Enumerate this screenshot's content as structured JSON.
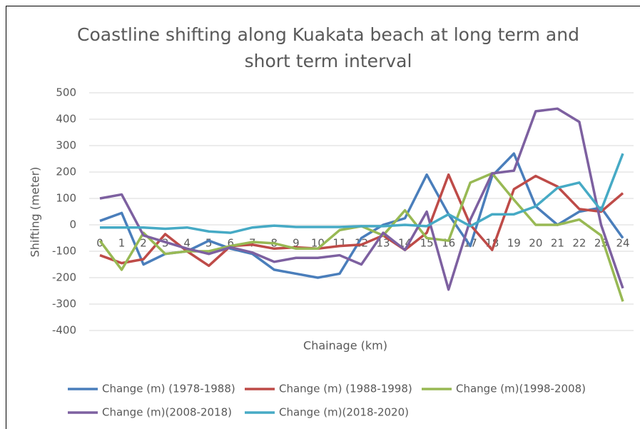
{
  "chart_data": {
    "type": "line",
    "title": "Coastline shifting along Kuakata beach at long term and short term interval",
    "x_label": "Chainage (km)",
    "y_label": "Shifting (meter)",
    "categories": [
      "0",
      "1",
      "2",
      "3",
      "4",
      "5",
      "6",
      "7",
      "8",
      "9",
      "10",
      "11",
      "12",
      "13",
      "14",
      "15",
      "16",
      "17",
      "18",
      "19",
      "20",
      "21",
      "22",
      "23",
      "24"
    ],
    "ylim": [
      -400,
      500
    ],
    "yticks": [
      -400,
      -300,
      -200,
      -100,
      0,
      100,
      200,
      300,
      400,
      500
    ],
    "grid": true,
    "legend": "bottom",
    "series": [
      {
        "name": "Change (m) (1978-1988)",
        "color": "#4a7ebb",
        "values": [
          15,
          45,
          -150,
          -110,
          -100,
          -60,
          -90,
          -110,
          -170,
          -185,
          -200,
          -185,
          -50,
          0,
          25,
          190,
          40,
          -80,
          185,
          270,
          70,
          0,
          50,
          65,
          -50
        ]
      },
      {
        "name": "Change (m) (1988-1998)",
        "color": "#be4b48",
        "values": [
          -115,
          -145,
          -130,
          -35,
          -100,
          -155,
          -80,
          -75,
          -90,
          -85,
          -90,
          -80,
          -75,
          -40,
          -95,
          -30,
          190,
          0,
          -95,
          135,
          185,
          145,
          60,
          50,
          120
        ]
      },
      {
        "name": "Change (m)(1998-2008)",
        "color": "#98b954",
        "values": [
          -60,
          -170,
          -30,
          -110,
          -100,
          -100,
          -80,
          -65,
          -70,
          -90,
          -90,
          -20,
          -5,
          -40,
          55,
          -50,
          -60,
          160,
          195,
          95,
          0,
          0,
          20,
          -40,
          -290
        ]
      },
      {
        "name": "Change (m)(2008-2018)",
        "color": "#7d60a0",
        "values": [
          100,
          115,
          -40,
          -65,
          -90,
          -110,
          -85,
          -105,
          -140,
          -125,
          -125,
          -115,
          -150,
          -30,
          -95,
          50,
          -245,
          20,
          195,
          205,
          430,
          440,
          390,
          0,
          -240
        ]
      },
      {
        "name": "Change (m)(2018-2020)",
        "color": "#46aac5",
        "values": [
          -10,
          -10,
          -10,
          -15,
          -10,
          -25,
          -30,
          -10,
          -3,
          -8,
          -8,
          -8,
          -5,
          -5,
          0,
          -5,
          40,
          -5,
          40,
          40,
          70,
          140,
          160,
          55,
          270
        ]
      }
    ]
  }
}
